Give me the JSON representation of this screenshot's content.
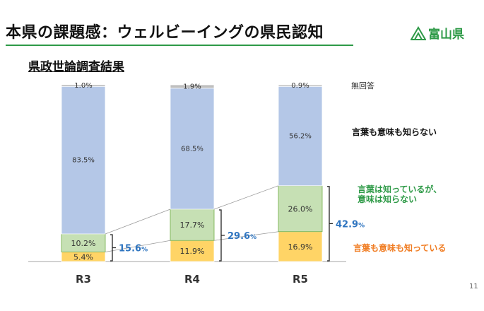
{
  "header": {
    "title": "本県の課題感：ウェルビーイングの県民認知",
    "logo_text": "富山県",
    "subtitle": "県政世論調査結果"
  },
  "colors": {
    "green": "#2e9a47",
    "blue_text": "#2f75c0",
    "orange_text": "#f07c22",
    "seg_both": "#ffd466",
    "seg_word": "#c6e0b4",
    "seg_unaware": "#b4c7e7",
    "seg_noans": "#bfbfbf"
  },
  "chart_data": {
    "type": "bar",
    "stacked": true,
    "categories": [
      "R3",
      "R4",
      "R5"
    ],
    "series": [
      {
        "name": "言葉も意味も知っている",
        "values": [
          5.4,
          11.9,
          16.9
        ],
        "labels": [
          "5.4%",
          "11.9%",
          "16.9%"
        ]
      },
      {
        "name": "言葉は知っているが、意味は知らない",
        "values": [
          10.2,
          17.7,
          26.0
        ],
        "labels": [
          "10.2%",
          "17.7%",
          "26.0%"
        ]
      },
      {
        "name": "言葉も意味も知らない",
        "values": [
          83.5,
          68.5,
          56.2
        ],
        "labels": [
          "83.5%",
          "68.5%",
          "56.2%"
        ]
      },
      {
        "name": "無回答",
        "values": [
          1.0,
          1.9,
          0.9
        ],
        "labels": [
          "1.0%",
          "1.9%",
          "0.9%"
        ]
      }
    ],
    "totals": [
      {
        "value": "15.6",
        "unit": "%"
      },
      {
        "value": "29.6",
        "unit": "%"
      },
      {
        "value": "42.9",
        "unit": "%"
      }
    ],
    "ylim": [
      0,
      100
    ],
    "legend_labels": {
      "noans": "無回答",
      "unaware": "言葉も意味も知らない",
      "word_line1": "言葉は知っているが、",
      "word_line2": "意味は知らない",
      "both": "言葉も意味も知っている"
    }
  },
  "page_number": "11"
}
